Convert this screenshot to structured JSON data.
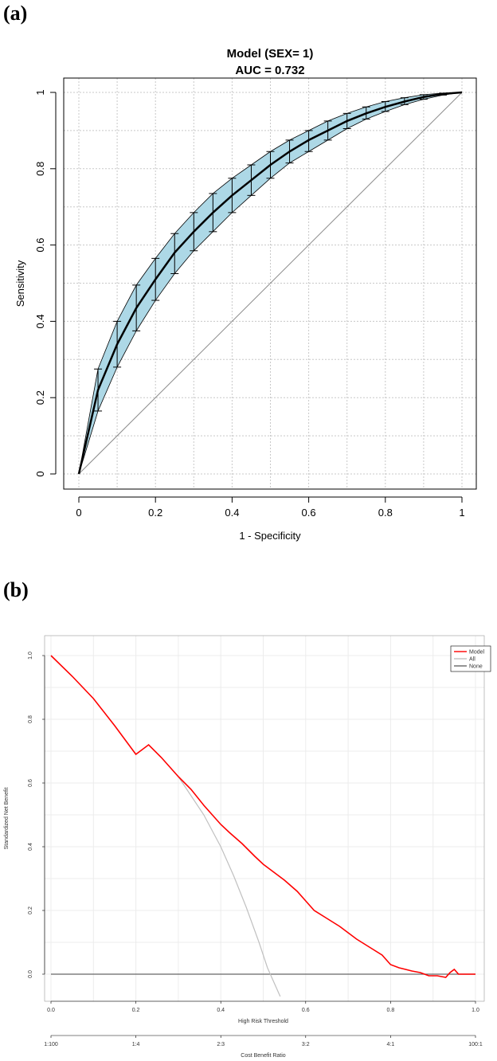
{
  "panels": {
    "a_label": "(a)",
    "b_label": "(b)"
  },
  "chart_data": [
    {
      "type": "line",
      "panel": "(a)",
      "title": "Model (SEX=  1)",
      "subtitle": "AUC =  0.732",
      "xlabel": "1 - Specificity",
      "ylabel": "Sensitivity",
      "xlim": [
        0,
        1
      ],
      "ylim": [
        0,
        1
      ],
      "x_ticks": [
        "0",
        "0.2",
        "0.4",
        "0.6",
        "0.8",
        "1"
      ],
      "y_ticks": [
        "0",
        "0.2",
        "0.4",
        "0.6",
        "0.8",
        "1"
      ],
      "grid": true,
      "diagonal": true,
      "fill_color": "#add8e6",
      "series": [
        {
          "x": [
            0,
            0.05,
            0.1,
            0.15,
            0.2,
            0.25,
            0.3,
            0.35,
            0.4,
            0.45,
            0.5,
            0.55,
            0.6,
            0.65,
            0.7,
            0.75,
            0.8,
            0.85,
            0.9,
            0.95,
            1
          ],
          "y": [
            0,
            0.22,
            0.34,
            0.435,
            0.51,
            0.58,
            0.635,
            0.685,
            0.73,
            0.77,
            0.81,
            0.845,
            0.875,
            0.9,
            0.925,
            0.945,
            0.962,
            0.976,
            0.988,
            0.996,
            1
          ],
          "lower": [
            0,
            0.165,
            0.28,
            0.375,
            0.455,
            0.525,
            0.585,
            0.635,
            0.685,
            0.73,
            0.775,
            0.815,
            0.845,
            0.875,
            0.905,
            0.93,
            0.95,
            0.968,
            0.982,
            0.993,
            1
          ],
          "upper": [
            0,
            0.275,
            0.4,
            0.495,
            0.565,
            0.63,
            0.685,
            0.735,
            0.775,
            0.81,
            0.845,
            0.875,
            0.9,
            0.925,
            0.945,
            0.962,
            0.976,
            0.986,
            0.994,
            0.998,
            1
          ]
        }
      ]
    },
    {
      "type": "line",
      "panel": "(b)",
      "xlabel": "High Risk Threshold",
      "ylabel": "Standardized Net Benefit",
      "secondary_xlabel": "Cost Benefit Ratio",
      "xlim": [
        0,
        1
      ],
      "ylim": [
        -0.07,
        1.02
      ],
      "x_ticks": [
        "0.0",
        "0.2",
        "0.4",
        "0.6",
        "0.8",
        "1.0"
      ],
      "y_ticks": [
        "0.0",
        "0.2",
        "0.4",
        "0.6",
        "0.8",
        "1.0"
      ],
      "secondary_ticks": [
        {
          "pos": 0,
          "label": "1:100"
        },
        {
          "pos": 0.2,
          "label": "1:4"
        },
        {
          "pos": 0.4,
          "label": "2:3"
        },
        {
          "pos": 0.6,
          "label": "3:2"
        },
        {
          "pos": 0.8,
          "label": "4:1"
        },
        {
          "pos": 1.0,
          "label": "100:1"
        }
      ],
      "grid": true,
      "legend_position": "top-right",
      "series": [
        {
          "name": "Model",
          "color": "#ff0000",
          "x": [
            0,
            0.05,
            0.1,
            0.15,
            0.2,
            0.23,
            0.26,
            0.3,
            0.33,
            0.36,
            0.38,
            0.4,
            0.42,
            0.45,
            0.48,
            0.5,
            0.52,
            0.55,
            0.58,
            0.6,
            0.62,
            0.65,
            0.68,
            0.7,
            0.72,
            0.75,
            0.78,
            0.8,
            0.82,
            0.85,
            0.87,
            0.89,
            0.91,
            0.93,
            0.94,
            0.95,
            0.96,
            1.0
          ],
          "y": [
            1.0,
            0.935,
            0.865,
            0.78,
            0.69,
            0.72,
            0.68,
            0.62,
            0.58,
            0.53,
            0.5,
            0.47,
            0.445,
            0.41,
            0.37,
            0.345,
            0.325,
            0.295,
            0.26,
            0.23,
            0.2,
            0.175,
            0.15,
            0.13,
            0.11,
            0.085,
            0.06,
            0.03,
            0.02,
            0.01,
            0.005,
            -0.005,
            -0.005,
            -0.01,
            0.005,
            0.015,
            0.0,
            0.0
          ]
        },
        {
          "name": "All",
          "color": "#c0c0c0",
          "x": [
            0.23,
            0.26,
            0.3,
            0.33,
            0.36,
            0.4,
            0.43,
            0.46,
            0.49,
            0.51,
            0.53,
            0.54
          ],
          "y": [
            0.72,
            0.68,
            0.62,
            0.56,
            0.5,
            0.4,
            0.31,
            0.21,
            0.1,
            0.02,
            -0.04,
            -0.07
          ]
        },
        {
          "name": "None",
          "color": "#666666",
          "x": [
            0,
            1
          ],
          "y": [
            0,
            0
          ]
        }
      ]
    }
  ]
}
